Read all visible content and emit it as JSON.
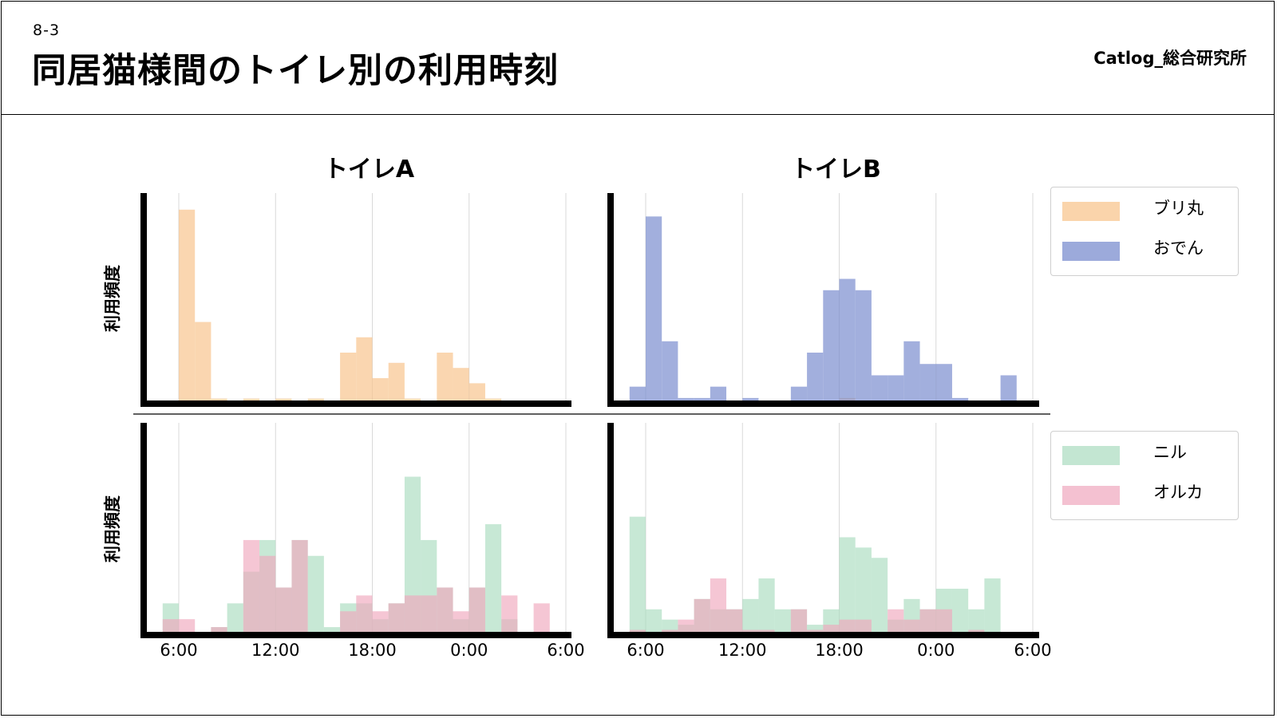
{
  "header": {
    "section_number": "8-3",
    "title": "同居猫様間のトイレ別の利用時刻",
    "brand": "Catlog_総合研究所"
  },
  "legends": [
    {
      "items": [
        {
          "label": "ブリ丸",
          "color": "#f8c58f"
        },
        {
          "label": "おでん",
          "color": "#7b8dcf"
        }
      ]
    },
    {
      "items": [
        {
          "label": "ニル",
          "color": "#a9dcbf"
        },
        {
          "label": "オルカ",
          "color": "#f0a7bd"
        }
      ]
    }
  ],
  "chart_data": [
    {
      "type": "bar",
      "panel": "top-left",
      "title": "トイレA",
      "ylabel": "利用頻度",
      "xlabel": "",
      "x_ticks": [
        "6:00",
        "12:00",
        "18:00",
        "0:00",
        "6:00"
      ],
      "bin_start_hours": [
        5,
        6,
        7,
        8,
        9,
        10,
        11,
        12,
        13,
        14,
        15,
        16,
        17,
        18,
        19,
        20,
        21,
        22,
        23,
        24,
        25,
        26,
        27,
        28
      ],
      "series": [
        {
          "name": "ブリ丸",
          "color": "#f8c58f",
          "values": [
            0,
            19,
            8,
            0.5,
            0,
            0.5,
            0,
            0.5,
            0,
            0.5,
            0,
            5,
            6.5,
            2.5,
            4,
            0.5,
            0,
            5,
            3.5,
            2,
            0.5,
            0,
            0,
            0
          ]
        },
        {
          "name": "おでん",
          "color": "#7b8dcf",
          "values": [
            0,
            0,
            0,
            0,
            0,
            0,
            0,
            0,
            0,
            0,
            0,
            0,
            0,
            0,
            0,
            0,
            0,
            0,
            0,
            0,
            0,
            0,
            0,
            0
          ]
        }
      ],
      "ylim": [
        0,
        20
      ]
    },
    {
      "type": "bar",
      "panel": "top-right",
      "title": "トイレB",
      "ylabel": "",
      "xlabel": "",
      "x_ticks": [
        "6:00",
        "12:00",
        "18:00",
        "0:00",
        "6:00"
      ],
      "bin_start_hours": [
        5,
        6,
        7,
        8,
        9,
        10,
        11,
        12,
        13,
        14,
        15,
        16,
        17,
        18,
        19,
        20,
        21,
        22,
        23,
        24,
        25,
        26,
        27,
        28
      ],
      "series": [
        {
          "name": "ブリ丸",
          "color": "#f8c58f",
          "values": [
            0,
            0,
            0,
            0,
            0,
            0,
            0,
            0,
            0,
            0,
            0,
            0,
            0,
            0.5,
            0,
            0,
            0,
            0,
            0,
            0,
            0,
            0,
            0,
            0
          ]
        },
        {
          "name": "おでん",
          "color": "#7b8dcf",
          "values": [
            1.5,
            16.5,
            5.5,
            0.5,
            0.5,
            1.5,
            0,
            0.5,
            0,
            0,
            1.5,
            4.5,
            10,
            11,
            10,
            2.5,
            2.5,
            5.5,
            3.5,
            3.5,
            0.5,
            0,
            0,
            2.5
          ]
        }
      ],
      "ylim": [
        0,
        18
      ]
    },
    {
      "type": "bar",
      "panel": "bottom-left",
      "title": "",
      "ylabel": "利用頻度",
      "xlabel": "",
      "x_ticks": [
        "6:00",
        "12:00",
        "18:00",
        "0:00",
        "6:00"
      ],
      "bin_start_hours": [
        5,
        6,
        7,
        8,
        9,
        10,
        11,
        12,
        13,
        14,
        15,
        16,
        17,
        18,
        19,
        20,
        21,
        22,
        23,
        24,
        25,
        26,
        27,
        28
      ],
      "series": [
        {
          "name": "ニル",
          "color": "#a9dcbf",
          "values": [
            2,
            0,
            0,
            0.5,
            2,
            4,
            6,
            3,
            6,
            5,
            0.5,
            2,
            2,
            1,
            2,
            10,
            6,
            3,
            1,
            3,
            7,
            1,
            0,
            0
          ]
        },
        {
          "name": "オルカ",
          "color": "#f0a7bd",
          "values": [
            1,
            1,
            0,
            0.5,
            0,
            6,
            5,
            3,
            6,
            0,
            0,
            1.5,
            2.5,
            1.5,
            2,
            2.5,
            2.5,
            3,
            1.5,
            3,
            0,
            2.5,
            0,
            2
          ]
        }
      ],
      "ylim": [
        0,
        13
      ]
    },
    {
      "type": "bar",
      "panel": "bottom-right",
      "title": "",
      "ylabel": "",
      "xlabel": "",
      "x_ticks": [
        "6:00",
        "12:00",
        "18:00",
        "0:00",
        "6:00"
      ],
      "bin_start_hours": [
        5,
        6,
        7,
        8,
        9,
        10,
        11,
        12,
        13,
        14,
        15,
        16,
        17,
        18,
        19,
        20,
        21,
        22,
        23,
        24,
        25,
        26,
        27,
        28
      ],
      "series": [
        {
          "name": "ニル",
          "color": "#a9dcbf",
          "values": [
            11.5,
            2.5,
            1.5,
            1,
            3.5,
            2.5,
            2.5,
            3.5,
            5.5,
            2.5,
            2.5,
            1,
            2.5,
            9.5,
            8.5,
            7.5,
            1.5,
            3.5,
            2.5,
            4.5,
            4.5,
            2.5,
            5.5,
            0
          ]
        },
        {
          "name": "オルカ",
          "color": "#f0a7bd",
          "values": [
            0.5,
            0,
            0.5,
            1.5,
            3.5,
            5.5,
            2.5,
            0.5,
            0.5,
            0,
            2.5,
            0.5,
            1,
            1.5,
            1.5,
            0,
            2.5,
            1.5,
            2.5,
            2.5,
            0,
            0.5,
            0,
            0
          ]
        }
      ],
      "ylim": [
        0,
        20
      ]
    }
  ]
}
